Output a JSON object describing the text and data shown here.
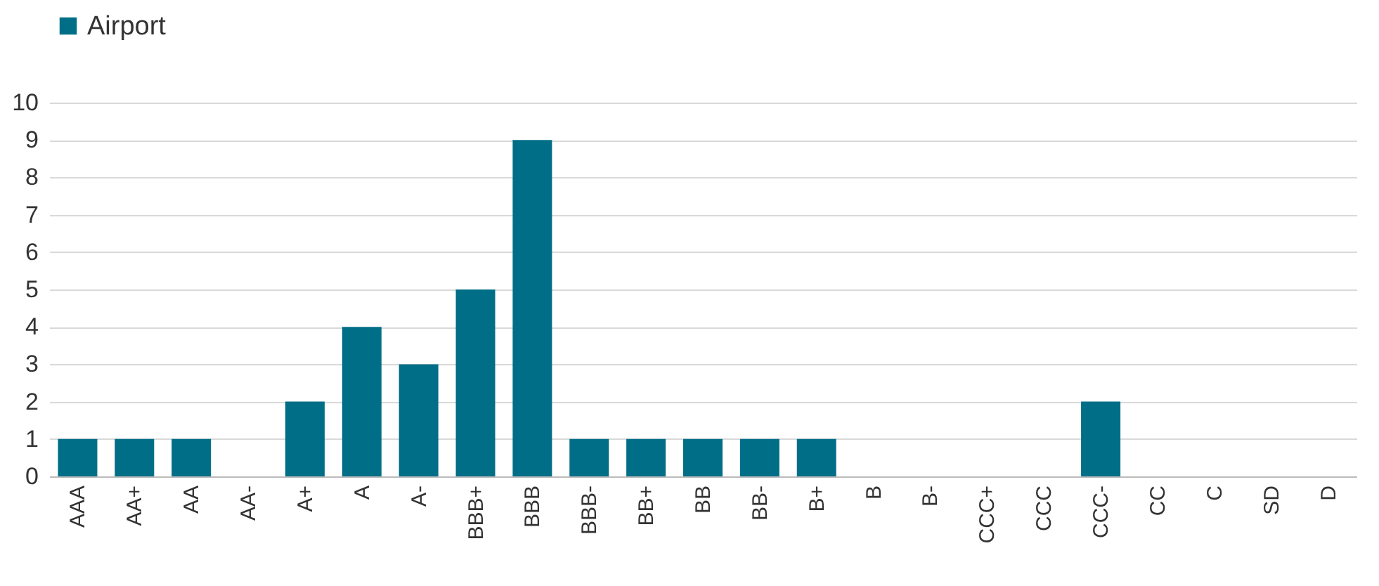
{
  "chart_data": {
    "type": "bar",
    "categories": [
      "AAA",
      "AA+",
      "AA",
      "AA-",
      "A+",
      "A",
      "A-",
      "BBB+",
      "BBB",
      "BBB-",
      "BB+",
      "BB",
      "BB-",
      "B+",
      "B",
      "B-",
      "CCC+",
      "CCC",
      "CCC-",
      "CC",
      "C",
      "SD",
      "D"
    ],
    "series": [
      {
        "name": "Airport",
        "color": "#006e87",
        "values": [
          1,
          1,
          1,
          0,
          2,
          4,
          3,
          5,
          9,
          1,
          1,
          1,
          1,
          1,
          0,
          0,
          0,
          0,
          2,
          0,
          0,
          0,
          0
        ]
      }
    ],
    "ylim": [
      0,
      10
    ],
    "yticks": [
      0,
      1,
      2,
      3,
      4,
      5,
      6,
      7,
      8,
      9,
      10
    ],
    "grid": "y",
    "legend": "top"
  }
}
